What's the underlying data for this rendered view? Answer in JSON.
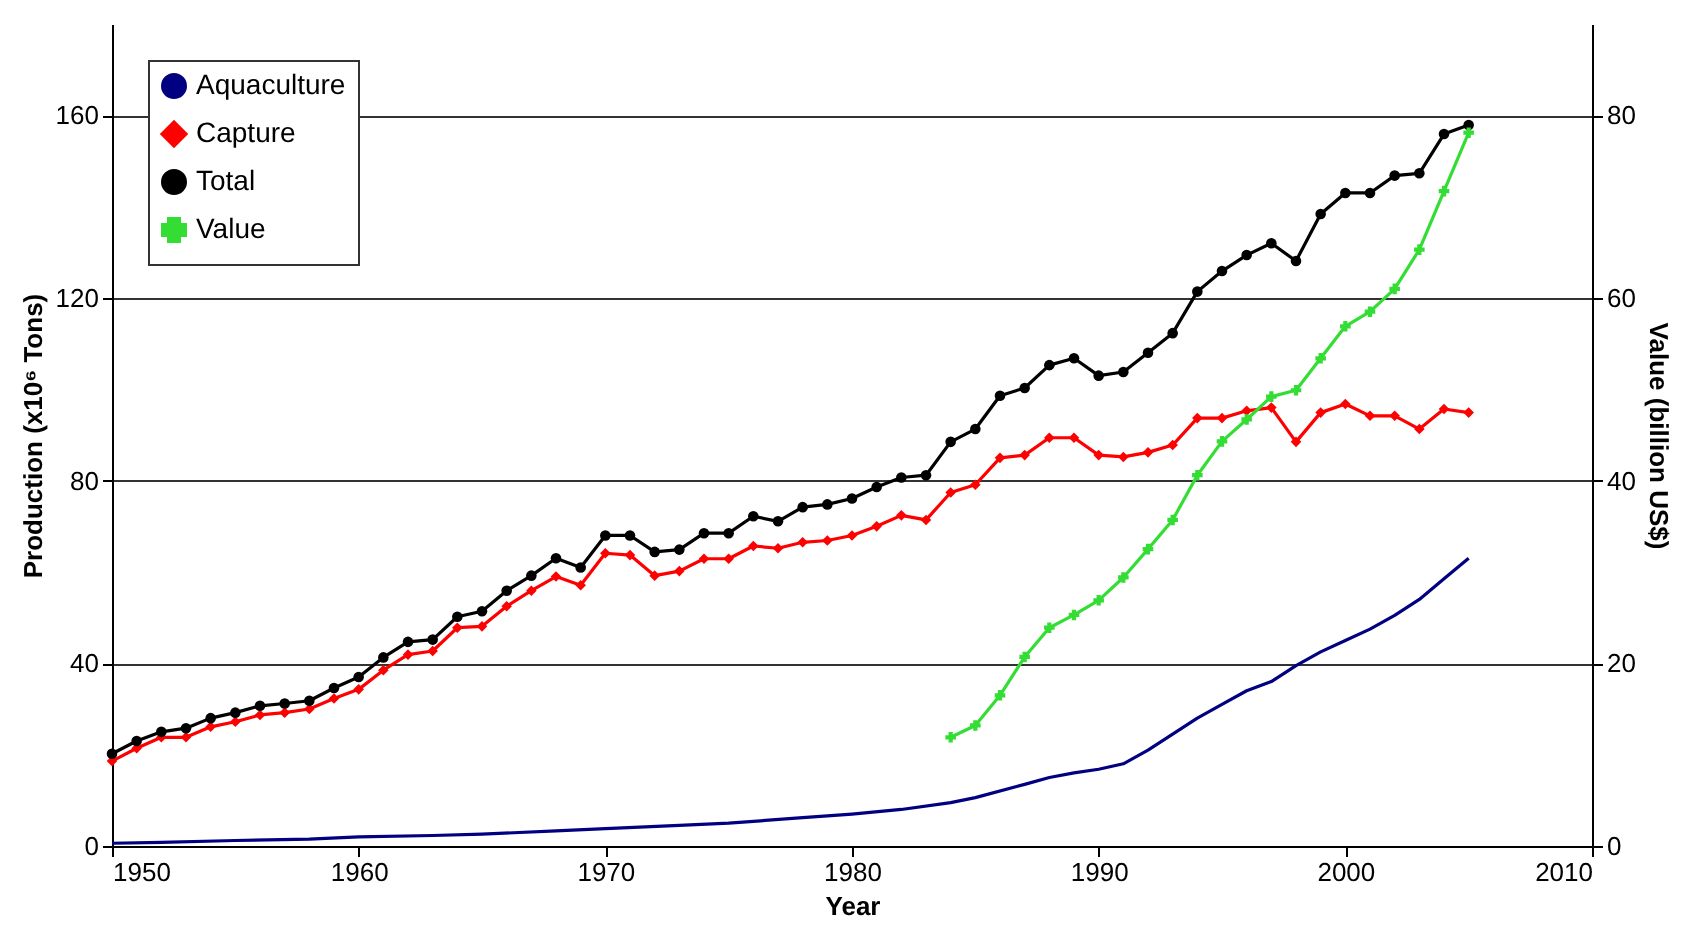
{
  "chart_data": {
    "type": "line",
    "xlabel": "Year",
    "ylabel": "Production (x10⁶ Tons)",
    "y2label": "Value (billion US$)",
    "xlim": [
      1950,
      2010
    ],
    "xticks": [
      1950,
      1960,
      1970,
      1980,
      1990,
      2000,
      2010
    ],
    "ylim": [
      0,
      180
    ],
    "yticks": [
      0,
      40,
      80,
      120,
      160
    ],
    "y2lim": [
      0,
      90
    ],
    "y2ticks": [
      0,
      20,
      40,
      60,
      80
    ],
    "grid": "y",
    "legend": "top left",
    "line_style": "solid",
    "series": [
      {
        "name": "Aquaculture",
        "color": "#000080",
        "marker": "none",
        "x": [
          1950,
          1952,
          1955,
          1958,
          1960,
          1963,
          1965,
          1968,
          1970,
          1973,
          1975,
          1978,
          1980,
          1982,
          1984,
          1985,
          1987,
          1988,
          1989,
          1990,
          1991,
          1992,
          1993,
          1994,
          1995,
          1996,
          1997,
          1998,
          1999,
          2000,
          2001,
          2002,
          2003,
          2004,
          2005
        ],
        "values": [
          0.6,
          0.8,
          1.2,
          1.5,
          2,
          2.3,
          2.6,
          3.3,
          3.8,
          4.5,
          5,
          6.2,
          7,
          8,
          9.5,
          10.6,
          13.5,
          15,
          16,
          16.8,
          18,
          21,
          24.5,
          28,
          31,
          34,
          36,
          39.5,
          42.5,
          45,
          47.5,
          50.5,
          54,
          58.5,
          63
        ]
      },
      {
        "name": "Capture",
        "color": "#ff0000",
        "marker": "diamond",
        "x": [
          1950,
          1951,
          1952,
          1953,
          1954,
          1955,
          1956,
          1957,
          1958,
          1959,
          1960,
          1961,
          1962,
          1963,
          1964,
          1965,
          1966,
          1967,
          1968,
          1969,
          1970,
          1971,
          1972,
          1973,
          1974,
          1975,
          1976,
          1977,
          1978,
          1979,
          1980,
          1981,
          1982,
          1983,
          1984,
          1985,
          1986,
          1987,
          1988,
          1989,
          1990,
          1991,
          1992,
          1993,
          1994,
          1995,
          1996,
          1997,
          1998,
          1999,
          2000,
          2001,
          2002,
          2003,
          2004,
          2005
        ],
        "values": [
          18.6,
          21.4,
          23.8,
          23.8,
          26.1,
          27.2,
          28.7,
          29.2,
          30,
          32.3,
          34.3,
          38.5,
          41.9,
          42.7,
          47.8,
          48.1,
          52.5,
          55.9,
          59,
          57.1,
          64.1,
          63.7,
          59.2,
          60.2,
          62.9,
          62.9,
          65.7,
          65.2,
          66.5,
          66.9,
          68,
          70,
          72.4,
          71.4,
          77.4,
          79.1,
          85,
          85.6,
          89.4,
          89.4,
          85.6,
          85.2,
          86.2,
          87.8,
          93.7,
          93.7,
          95.3,
          96,
          88.5,
          94.9,
          96.8,
          94.2,
          94.2,
          91.3,
          95.7,
          94.9
        ]
      },
      {
        "name": "Total",
        "color": "#000000",
        "marker": "circle",
        "x": [
          1950,
          1951,
          1952,
          1953,
          1954,
          1955,
          1956,
          1957,
          1958,
          1959,
          1960,
          1961,
          1962,
          1963,
          1964,
          1965,
          1966,
          1967,
          1968,
          1969,
          1970,
          1971,
          1972,
          1973,
          1974,
          1975,
          1976,
          1977,
          1978,
          1979,
          1980,
          1981,
          1982,
          1983,
          1984,
          1985,
          1986,
          1987,
          1988,
          1989,
          1990,
          1991,
          1992,
          1993,
          1994,
          1995,
          1996,
          1997,
          1998,
          1999,
          2000,
          2001,
          2002,
          2003,
          2004,
          2005
        ],
        "values": [
          20.2,
          23,
          25,
          25.8,
          28,
          29.2,
          30.7,
          31.2,
          31.8,
          34.6,
          37,
          41.3,
          44.7,
          45.2,
          50.2,
          51.4,
          55.9,
          59.2,
          63,
          61,
          68,
          68,
          64.4,
          64.9,
          68.5,
          68.5,
          72.2,
          71.1,
          74.2,
          74.8,
          76.1,
          78.6,
          80.7,
          81.2,
          88.5,
          91.3,
          98.6,
          100.3,
          105.3,
          106.8,
          103,
          103.8,
          108,
          112.3,
          121.4,
          125.9,
          129.4,
          132,
          128.1,
          138.4,
          143,
          143,
          146.8,
          147.3,
          155.9,
          157.9
        ]
      },
      {
        "name": "Value",
        "color": "#33dd33",
        "marker": "cross",
        "axis": "y2",
        "x": [
          1984,
          1985,
          1986,
          1987,
          1988,
          1989,
          1990,
          1991,
          1992,
          1993,
          1994,
          1995,
          1996,
          1997,
          1998,
          1999,
          2000,
          2001,
          2002,
          2003,
          2004,
          2005
        ],
        "values": [
          11.9,
          13.2,
          16.5,
          20.7,
          23.9,
          25.3,
          26.9,
          29.4,
          32.5,
          35.7,
          40.6,
          44.3,
          46.7,
          49.2,
          49.9,
          53.4,
          56.9,
          58.5,
          61,
          65.3,
          71.7,
          78.1
        ]
      }
    ]
  }
}
